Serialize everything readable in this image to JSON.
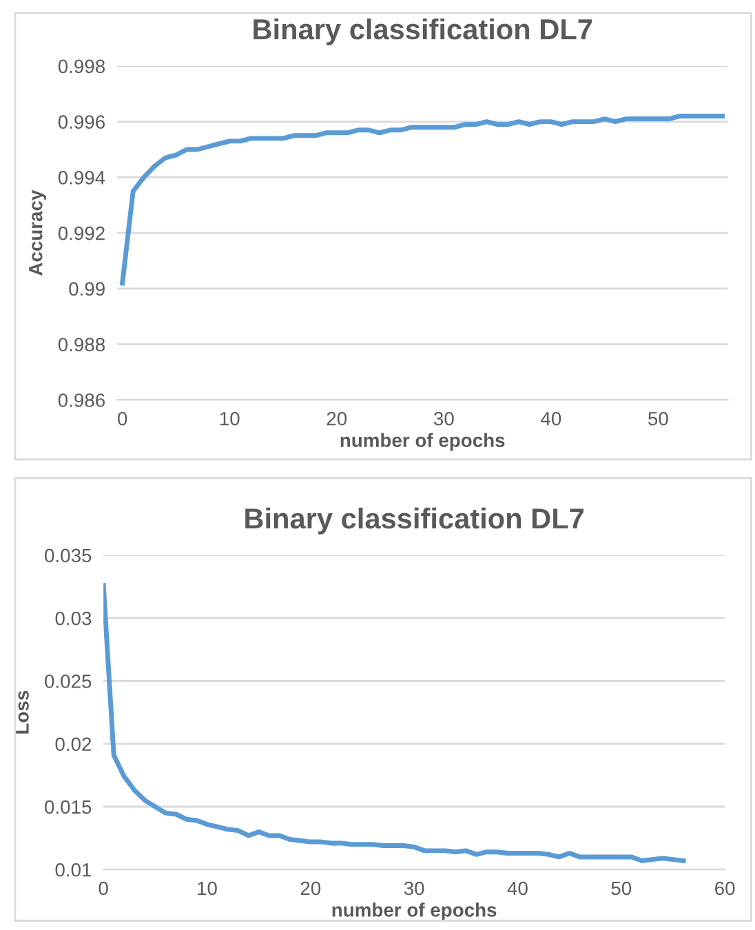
{
  "chart_data": [
    {
      "type": "line",
      "title": "Binary classification DL7",
      "xlabel": "number of epochs",
      "ylabel": "Accuracy",
      "x": [
        0,
        1,
        2,
        3,
        4,
        5,
        6,
        7,
        8,
        9,
        10,
        11,
        12,
        13,
        14,
        15,
        16,
        17,
        18,
        19,
        20,
        21,
        22,
        23,
        24,
        25,
        26,
        27,
        28,
        29,
        30,
        31,
        32,
        33,
        34,
        35,
        36,
        37,
        38,
        39,
        40,
        41,
        42,
        43,
        44,
        45,
        46,
        47,
        48,
        49,
        50,
        51,
        52,
        53,
        54,
        55,
        56
      ],
      "series": [
        {
          "color": "#5b9bd5",
          "values": [
            0.9902,
            0.9935,
            0.994,
            0.9944,
            0.9947,
            0.9948,
            0.995,
            0.995,
            0.9951,
            0.9952,
            0.9953,
            0.9953,
            0.9954,
            0.9954,
            0.9954,
            0.9954,
            0.9955,
            0.9955,
            0.9955,
            0.9956,
            0.9956,
            0.9956,
            0.9957,
            0.9957,
            0.9956,
            0.9957,
            0.9957,
            0.9958,
            0.9958,
            0.9958,
            0.9958,
            0.9958,
            0.9959,
            0.9959,
            0.996,
            0.9959,
            0.9959,
            0.996,
            0.9959,
            0.996,
            0.996,
            0.9959,
            0.996,
            0.996,
            0.996,
            0.9961,
            0.996,
            0.9961,
            0.9961,
            0.9961,
            0.9961,
            0.9961,
            0.9962,
            0.9962,
            0.9962,
            0.9962,
            0.9962
          ]
        }
      ],
      "xlim": [
        -0.5,
        56.5
      ],
      "xticks": [
        0,
        10,
        20,
        30,
        40,
        50
      ],
      "ylim": [
        0.986,
        0.998
      ],
      "yticks": [
        0.986,
        0.988,
        0.99,
        0.992,
        0.994,
        0.996,
        0.998
      ],
      "grid": "y",
      "line_style": "solid"
    },
    {
      "type": "line",
      "title": "Binary classification DL7",
      "xlabel": "number of epochs",
      "ylabel": "Loss",
      "x": [
        0,
        1,
        2,
        3,
        4,
        5,
        6,
        7,
        8,
        9,
        10,
        11,
        12,
        13,
        14,
        15,
        16,
        17,
        18,
        19,
        20,
        21,
        22,
        23,
        24,
        25,
        26,
        27,
        28,
        29,
        30,
        31,
        32,
        33,
        34,
        35,
        36,
        37,
        38,
        39,
        40,
        41,
        42,
        43,
        44,
        45,
        46,
        47,
        48,
        49,
        50,
        51,
        52,
        53,
        54,
        55,
        56
      ],
      "series": [
        {
          "color": "#5b9bd5",
          "values": [
            0.0326,
            0.0191,
            0.0174,
            0.0163,
            0.0155,
            0.015,
            0.0145,
            0.0144,
            0.014,
            0.0139,
            0.0136,
            0.0134,
            0.0132,
            0.0131,
            0.0127,
            0.013,
            0.0127,
            0.0127,
            0.0124,
            0.0123,
            0.0122,
            0.0122,
            0.0121,
            0.0121,
            0.012,
            0.012,
            0.012,
            0.0119,
            0.0119,
            0.0119,
            0.0118,
            0.0115,
            0.0115,
            0.0115,
            0.0114,
            0.0115,
            0.0112,
            0.0114,
            0.0114,
            0.0113,
            0.0113,
            0.0113,
            0.0113,
            0.0112,
            0.011,
            0.0113,
            0.011,
            0.011,
            0.011,
            0.011,
            0.011,
            0.011,
            0.0107,
            0.0108,
            0.0109,
            0.0108,
            0.0107
          ]
        }
      ],
      "xlim": [
        0,
        60
      ],
      "xticks": [
        0,
        10,
        20,
        30,
        40,
        50,
        60
      ],
      "ylim": [
        0.01,
        0.035
      ],
      "yticks": [
        0.01,
        0.015,
        0.02,
        0.025,
        0.03,
        0.035
      ],
      "grid": "y",
      "line_style": "solid"
    }
  ]
}
